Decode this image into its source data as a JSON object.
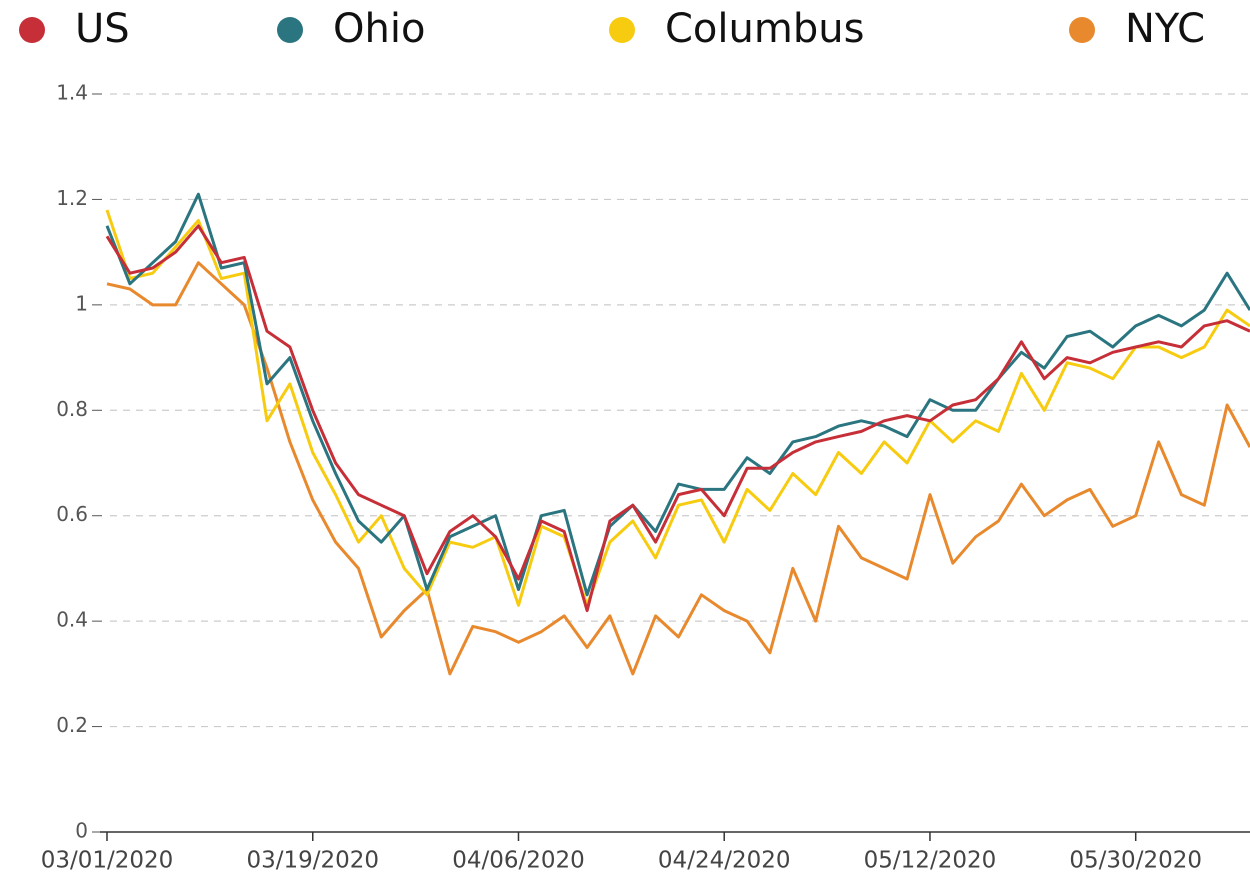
{
  "chart_data": {
    "type": "line",
    "x": [
      "03/01/2020",
      "03/03/2020",
      "03/05/2020",
      "03/07/2020",
      "03/09/2020",
      "03/11/2020",
      "03/13/2020",
      "03/15/2020",
      "03/17/2020",
      "03/19/2020",
      "03/21/2020",
      "03/23/2020",
      "03/25/2020",
      "03/27/2020",
      "03/29/2020",
      "03/31/2020",
      "04/02/2020",
      "04/04/2020",
      "04/06/2020",
      "04/08/2020",
      "04/10/2020",
      "04/12/2020",
      "04/14/2020",
      "04/16/2020",
      "04/18/2020",
      "04/20/2020",
      "04/22/2020",
      "04/24/2020",
      "04/26/2020",
      "04/28/2020",
      "04/30/2020",
      "05/02/2020",
      "05/04/2020",
      "05/06/2020",
      "05/08/2020",
      "05/10/2020",
      "05/12/2020",
      "05/14/2020",
      "05/16/2020",
      "05/18/2020",
      "05/20/2020",
      "05/22/2020",
      "05/24/2020",
      "05/26/2020",
      "05/28/2020",
      "05/30/2020",
      "06/01/2020",
      "06/03/2020",
      "06/05/2020",
      "06/07/2020",
      "06/09/2020"
    ],
    "series": [
      {
        "name": "US",
        "color": "#c62f38",
        "values": [
          1.13,
          1.06,
          1.07,
          1.1,
          1.15,
          1.08,
          1.09,
          0.95,
          0.92,
          0.8,
          0.7,
          0.64,
          0.62,
          0.6,
          0.49,
          0.57,
          0.6,
          0.56,
          0.48,
          0.59,
          0.57,
          0.42,
          0.59,
          0.62,
          0.55,
          0.64,
          0.65,
          0.6,
          0.69,
          0.69,
          0.72,
          0.74,
          0.75,
          0.76,
          0.78,
          0.79,
          0.78,
          0.81,
          0.82,
          0.86,
          0.93,
          0.86,
          0.9,
          0.89,
          0.91,
          0.92,
          0.93,
          0.92,
          0.96,
          0.97,
          0.95
        ]
      },
      {
        "name": "Ohio",
        "color": "#2a7580",
        "values": [
          1.15,
          1.04,
          1.08,
          1.12,
          1.21,
          1.07,
          1.08,
          0.85,
          0.9,
          0.78,
          0.68,
          0.59,
          0.55,
          0.6,
          0.46,
          0.56,
          0.58,
          0.6,
          0.46,
          0.6,
          0.61,
          0.45,
          0.58,
          0.62,
          0.57,
          0.66,
          0.65,
          0.65,
          0.71,
          0.68,
          0.74,
          0.75,
          0.77,
          0.78,
          0.77,
          0.75,
          0.82,
          0.8,
          0.8,
          0.86,
          0.91,
          0.88,
          0.94,
          0.95,
          0.92,
          0.96,
          0.98,
          0.96,
          0.99,
          1.06,
          0.99
        ]
      },
      {
        "name": "Columbus",
        "color": "#f7cc10",
        "values": [
          1.18,
          1.05,
          1.06,
          1.11,
          1.16,
          1.05,
          1.06,
          0.78,
          0.85,
          0.72,
          0.64,
          0.55,
          0.6,
          0.5,
          0.45,
          0.55,
          0.54,
          0.56,
          0.43,
          0.58,
          0.56,
          0.43,
          0.55,
          0.59,
          0.52,
          0.62,
          0.63,
          0.55,
          0.65,
          0.61,
          0.68,
          0.64,
          0.72,
          0.68,
          0.74,
          0.7,
          0.78,
          0.74,
          0.78,
          0.76,
          0.87,
          0.8,
          0.89,
          0.88,
          0.86,
          0.92,
          0.92,
          0.9,
          0.92,
          0.99,
          0.96
        ]
      },
      {
        "name": "NYC",
        "color": "#e8892d",
        "values": [
          1.04,
          1.03,
          1.0,
          1.0,
          1.08,
          1.04,
          1.0,
          0.88,
          0.74,
          0.63,
          0.55,
          0.5,
          0.37,
          0.42,
          0.46,
          0.3,
          0.39,
          0.38,
          0.36,
          0.38,
          0.41,
          0.35,
          0.41,
          0.3,
          0.41,
          0.37,
          0.45,
          0.42,
          0.4,
          0.34,
          0.5,
          0.4,
          0.58,
          0.52,
          0.5,
          0.48,
          0.64,
          0.51,
          0.56,
          0.59,
          0.66,
          0.6,
          0.63,
          0.65,
          0.58,
          0.6,
          0.74,
          0.64,
          0.62,
          0.81,
          0.73
        ]
      }
    ],
    "xlim": [
      "03/01/2020",
      "06/09/2020"
    ],
    "xticks": [
      "03/01/2020",
      "03/19/2020",
      "04/06/2020",
      "04/24/2020",
      "05/12/2020",
      "05/30/2020"
    ],
    "ylim": [
      0,
      1.4
    ],
    "yticks": [
      0,
      0.2,
      0.4,
      0.6,
      0.8,
      1,
      1.2,
      1.4
    ],
    "grid": true,
    "legend": "top"
  }
}
